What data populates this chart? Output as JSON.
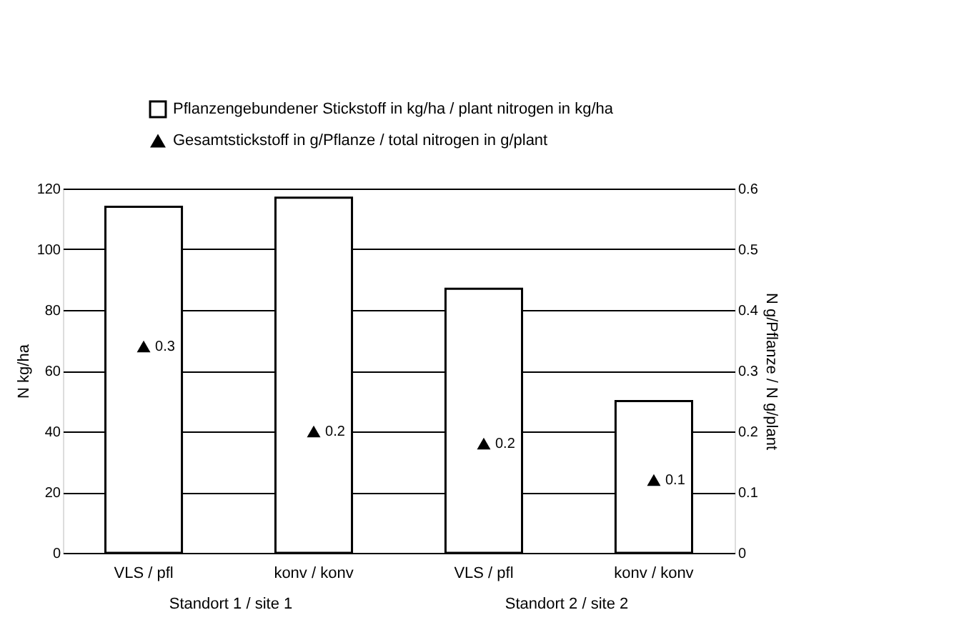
{
  "chart_data": {
    "type": "bar",
    "categories": [
      "VLS / pfl",
      "konv / konv",
      "VLS / pfl",
      "konv / konv"
    ],
    "ylabel": "N kg/ha",
    "y2label": "N g/Pflanze / N g/plant",
    "series": [
      {
        "name": "Pflanzengebundener Stickstoff in kg/ha / plant nitrogen in kg/ha",
        "color": "#ffffff",
        "values": [
          114,
          117,
          87,
          50
        ]
      },
      {
        "name": "Gesamtstickstoff in g/Pflanze / total nitrogen in g/plant",
        "type": "scatter",
        "axis": "y2",
        "color": "#000000",
        "marker": "triangle",
        "values": [
          0.34,
          0.2,
          0.18,
          0.12
        ],
        "value_labels": [
          "0.3",
          "0.2",
          "0.2",
          "0.1"
        ]
      }
    ],
    "ylim": [
      0,
      120
    ],
    "yticks": [
      0,
      20,
      40,
      60,
      80,
      100,
      120
    ],
    "y2lim": [
      0,
      0.6
    ],
    "y2ticks": [
      0,
      0.1,
      0.2,
      0.3,
      0.4,
      0.5,
      0.6
    ],
    "grid": "y",
    "legend": "top",
    "annotations": [
      "Standort 1 / site 1",
      "Standort 2 / site 2"
    ]
  }
}
